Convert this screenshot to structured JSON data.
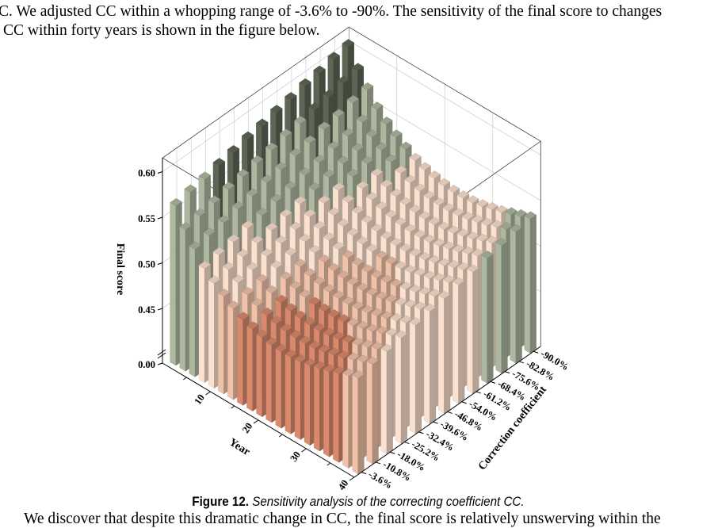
{
  "text": {
    "line1": "C. We adjusted CC within a whopping range of -3.6% to -90%. The sensitivity of the final score to changes",
    "line2": "CC within forty years is shown in the figure below.",
    "line3": "We discover that despite this dramatic change in CC, the final score is relatively unswerving within the"
  },
  "caption": {
    "label": "Figure 12.",
    "text": " Sensitivity analysis of the correcting coefficient CC."
  },
  "chart_data": {
    "type": "bar3d",
    "title": "",
    "xlabel": "Year",
    "ylabel": "Correction coefficient",
    "zlabel": "Final score",
    "x": [
      2,
      4,
      6,
      8,
      10,
      12,
      14,
      16,
      18,
      20,
      22,
      24,
      26,
      28,
      30,
      32,
      34,
      36,
      38,
      40
    ],
    "x_ticks": [
      "10",
      "20",
      "30",
      "40"
    ],
    "x_tick_values": [
      10,
      20,
      30,
      40
    ],
    "y_categories": [
      "-3.6%",
      "-10.8%",
      "-18.0%",
      "-25.2%",
      "-32.4%",
      "-39.6%",
      "-46.8%",
      "-54.0%",
      "-61.2%",
      "-68.4%",
      "-75.6%",
      "-82.8%",
      "-90.0%"
    ],
    "z_ticks": [
      "0.00",
      "0.45",
      "0.50",
      "0.55",
      "0.60"
    ],
    "z_tick_values": [
      0.0,
      0.45,
      0.5,
      0.55,
      0.6
    ],
    "z_break": [
      0.0,
      0.4
    ],
    "colors": {
      "dark_green": "#5d6655",
      "light_green": "#aeb8a0",
      "cream": "#fbe1cf",
      "pink": "#f0c2aa",
      "salmon": "#d98a6c"
    },
    "values": [
      [
        0.565,
        0.545,
        0.53,
        0.515,
        0.505,
        0.497,
        0.49,
        0.484,
        0.48,
        0.477,
        0.475,
        0.474,
        0.474,
        0.475,
        0.477,
        0.48,
        0.483,
        0.487,
        0.491,
        0.495
      ],
      [
        0.569,
        0.549,
        0.534,
        0.519,
        0.509,
        0.501,
        0.494,
        0.488,
        0.484,
        0.481,
        0.479,
        0.478,
        0.478,
        0.479,
        0.481,
        0.484,
        0.487,
        0.491,
        0.495,
        0.499
      ],
      [
        0.572,
        0.552,
        0.537,
        0.522,
        0.512,
        0.504,
        0.497,
        0.491,
        0.487,
        0.484,
        0.482,
        0.481,
        0.481,
        0.482,
        0.484,
        0.487,
        0.49,
        0.494,
        0.498,
        0.502
      ],
      [
        0.576,
        0.556,
        0.541,
        0.526,
        0.516,
        0.508,
        0.501,
        0.495,
        0.491,
        0.488,
        0.486,
        0.485,
        0.485,
        0.486,
        0.488,
        0.491,
        0.494,
        0.498,
        0.502,
        0.506
      ],
      [
        0.579,
        0.559,
        0.544,
        0.529,
        0.519,
        0.511,
        0.504,
        0.498,
        0.494,
        0.491,
        0.489,
        0.488,
        0.488,
        0.489,
        0.491,
        0.494,
        0.497,
        0.501,
        0.505,
        0.509
      ],
      [
        0.583,
        0.563,
        0.548,
        0.533,
        0.523,
        0.515,
        0.508,
        0.502,
        0.498,
        0.495,
        0.493,
        0.492,
        0.492,
        0.493,
        0.495,
        0.498,
        0.501,
        0.505,
        0.509,
        0.513
      ],
      [
        0.586,
        0.566,
        0.551,
        0.536,
        0.526,
        0.518,
        0.511,
        0.505,
        0.501,
        0.498,
        0.496,
        0.495,
        0.495,
        0.496,
        0.498,
        0.501,
        0.504,
        0.508,
        0.512,
        0.516
      ],
      [
        0.59,
        0.57,
        0.555,
        0.54,
        0.53,
        0.522,
        0.515,
        0.509,
        0.505,
        0.502,
        0.5,
        0.499,
        0.499,
        0.5,
        0.502,
        0.505,
        0.508,
        0.512,
        0.516,
        0.52
      ],
      [
        0.593,
        0.573,
        0.558,
        0.543,
        0.533,
        0.525,
        0.518,
        0.512,
        0.508,
        0.505,
        0.503,
        0.502,
        0.502,
        0.503,
        0.505,
        0.508,
        0.511,
        0.515,
        0.519,
        0.523
      ],
      [
        0.597,
        0.577,
        0.562,
        0.547,
        0.537,
        0.529,
        0.522,
        0.516,
        0.512,
        0.509,
        0.507,
        0.506,
        0.506,
        0.507,
        0.509,
        0.512,
        0.515,
        0.519,
        0.523,
        0.527
      ],
      [
        0.6,
        0.58,
        0.565,
        0.55,
        0.54,
        0.532,
        0.525,
        0.519,
        0.515,
        0.512,
        0.51,
        0.509,
        0.509,
        0.51,
        0.512,
        0.515,
        0.518,
        0.522,
        0.526,
        0.53
      ],
      [
        0.604,
        0.584,
        0.569,
        0.554,
        0.544,
        0.536,
        0.529,
        0.523,
        0.519,
        0.516,
        0.514,
        0.513,
        0.513,
        0.514,
        0.516,
        0.519,
        0.522,
        0.526,
        0.53,
        0.534
      ],
      [
        0.607,
        0.587,
        0.572,
        0.557,
        0.547,
        0.539,
        0.532,
        0.526,
        0.522,
        0.519,
        0.517,
        0.516,
        0.516,
        0.517,
        0.519,
        0.522,
        0.525,
        0.529,
        0.533,
        0.537
      ]
    ]
  }
}
